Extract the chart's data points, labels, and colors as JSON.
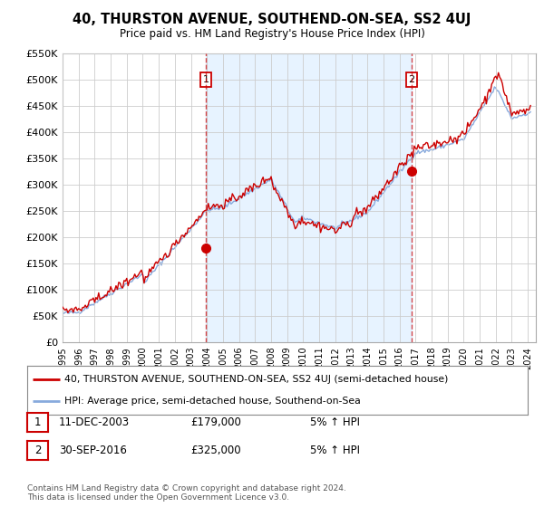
{
  "title": "40, THURSTON AVENUE, SOUTHEND-ON-SEA, SS2 4UJ",
  "subtitle": "Price paid vs. HM Land Registry's House Price Index (HPI)",
  "ytick_values": [
    0,
    50000,
    100000,
    150000,
    200000,
    250000,
    300000,
    350000,
    400000,
    450000,
    500000,
    550000
  ],
  "ylim": [
    0,
    550000
  ],
  "xlim_start": 1995.0,
  "xlim_end": 2024.5,
  "sale1_x": 2003.94,
  "sale1_y": 179000,
  "sale2_x": 2016.75,
  "sale2_y": 325000,
  "legend_line1": "40, THURSTON AVENUE, SOUTHEND-ON-SEA, SS2 4UJ (semi-detached house)",
  "legend_line2": "HPI: Average price, semi-detached house, Southend-on-Sea",
  "note1_date": "11-DEC-2003",
  "note1_price": "£179,000",
  "note1_hpi": "5% ↑ HPI",
  "note2_date": "30-SEP-2016",
  "note2_price": "£325,000",
  "note2_hpi": "5% ↑ HPI",
  "footnote": "Contains HM Land Registry data © Crown copyright and database right 2024.\nThis data is licensed under the Open Government Licence v3.0.",
  "line_color_property": "#cc0000",
  "line_color_hpi": "#88aadd",
  "shade_color": "#ddeeff",
  "background_color": "#ffffff",
  "grid_color": "#cccccc",
  "xtick_years": [
    1995,
    1996,
    1997,
    1998,
    1999,
    2000,
    2001,
    2002,
    2003,
    2004,
    2005,
    2006,
    2007,
    2008,
    2009,
    2010,
    2011,
    2012,
    2013,
    2014,
    2015,
    2016,
    2017,
    2018,
    2019,
    2020,
    2021,
    2022,
    2023,
    2024
  ]
}
